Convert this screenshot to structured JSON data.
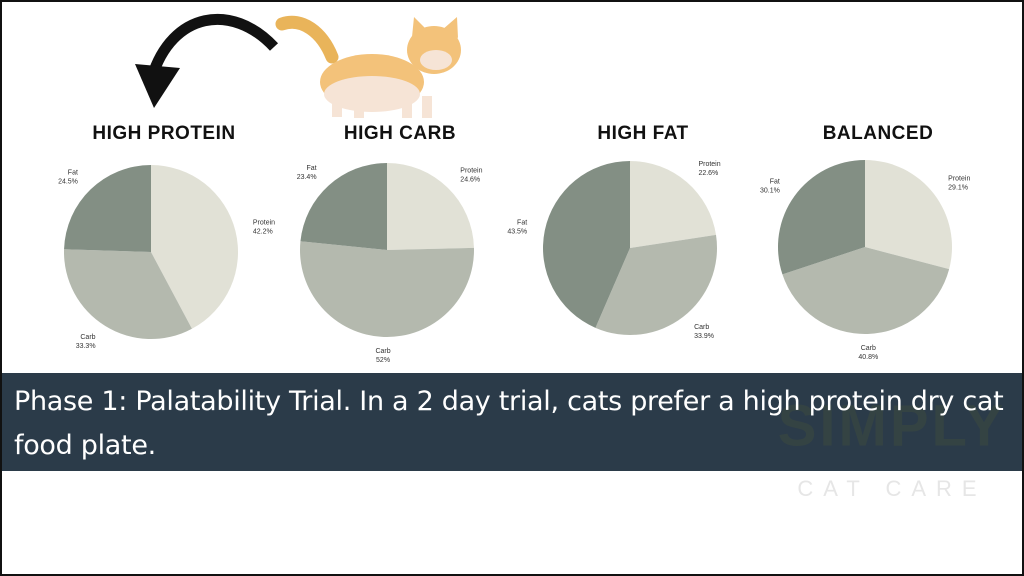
{
  "chart_data": [
    {
      "type": "pie",
      "title": "HIGH PROTEIN",
      "categories": [
        "Protein",
        "Carb",
        "Fat"
      ],
      "values": [
        42.2,
        33.3,
        24.5
      ],
      "value_labels": [
        "42.2%",
        "33.3%",
        "24.5%"
      ],
      "colors": [
        "#e1e1d6",
        "#b4b9ae",
        "#838f84"
      ]
    },
    {
      "type": "pie",
      "title": "HIGH CARB",
      "categories": [
        "Protein",
        "Carb",
        "Fat"
      ],
      "values": [
        24.6,
        52,
        23.4
      ],
      "value_labels": [
        "24.6%",
        "52%",
        "23.4%"
      ],
      "colors": [
        "#e1e1d6",
        "#b4b9ae",
        "#838f84"
      ]
    },
    {
      "type": "pie",
      "title": "HIGH FAT",
      "categories": [
        "Protein",
        "Carb",
        "Fat"
      ],
      "values": [
        22.6,
        33.9,
        43.5
      ],
      "value_labels": [
        "22.6%",
        "33.9%",
        "43.5%"
      ],
      "colors": [
        "#e1e1d6",
        "#b4b9ae",
        "#838f84"
      ]
    },
    {
      "type": "pie",
      "title": "BALANCED",
      "categories": [
        "Protein",
        "Carb",
        "Fat"
      ],
      "values": [
        29.1,
        40.8,
        30.1
      ],
      "value_labels": [
        "29.1%",
        "40.8%",
        "30.1%"
      ],
      "colors": [
        "#e1e1d6",
        "#b4b9ae",
        "#838f84"
      ]
    }
  ],
  "caption": "Phase 1: Palatability Trial. In a 2 day trial, cats prefer a high protein dry cat food plate.",
  "watermark": {
    "brand": "SIMPLY",
    "tagline": "CAT CARE"
  }
}
